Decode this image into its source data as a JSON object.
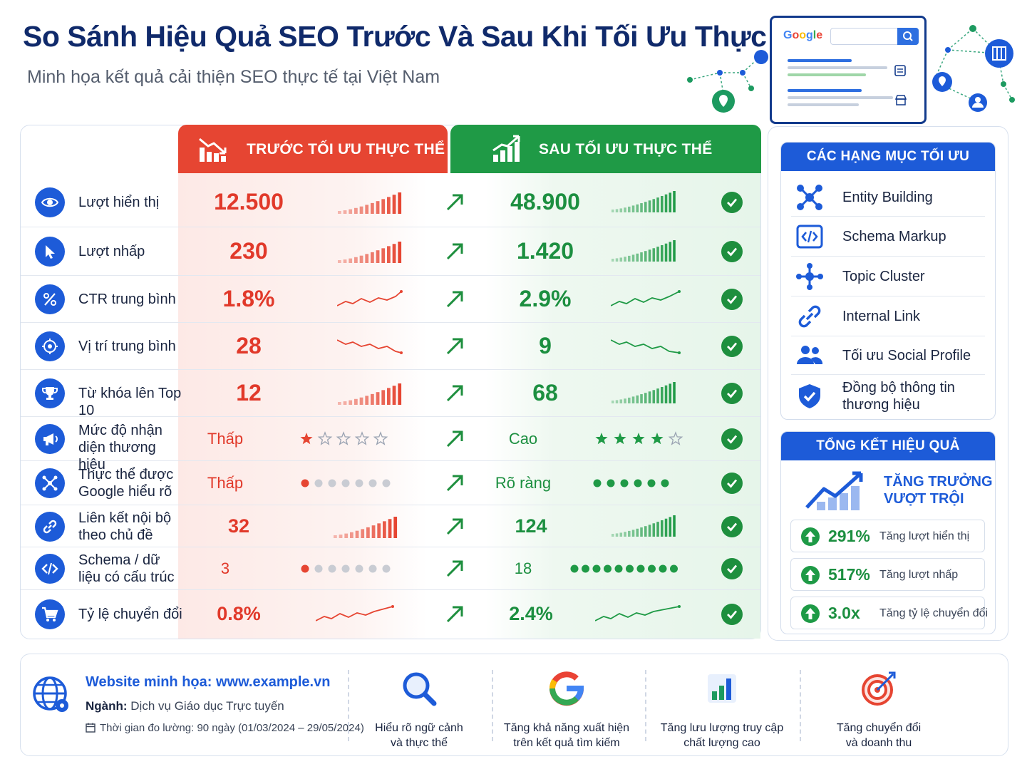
{
  "header": {
    "title": "So Sánh Hiệu Quả SEO Trước Và Sau Khi Tối Ưu Thực Thể",
    "subtitle": "Minh họa kết quả cải thiện SEO thực tế tại Việt Nam",
    "google_logo": "Google"
  },
  "table": {
    "before_header": "TRƯỚC TỐI ƯU THỰC THỂ",
    "after_header": "SAU TỐI ƯU THỰC THỂ",
    "rows": [
      {
        "label": "Lượt hiển thị",
        "before": "12.500",
        "after": "48.900",
        "icon": "eye-icon",
        "viz": "bars"
      },
      {
        "label": "Lượt nhấp",
        "before": "230",
        "after": "1.420",
        "icon": "cursor-icon",
        "viz": "bars"
      },
      {
        "label": "CTR trung bình",
        "before": "1.8%",
        "after": "2.9%",
        "icon": "percent-icon",
        "viz": "line-up"
      },
      {
        "label": "Vị trí trung bình",
        "before": "28",
        "after": "9",
        "icon": "target-icon",
        "viz": "line-down"
      },
      {
        "label": "Từ khóa lên Top 10",
        "before": "12",
        "after": "68",
        "icon": "trophy-icon",
        "viz": "bars"
      },
      {
        "label": "Mức độ nhận diện thương hiệu",
        "before": "Thấp",
        "after": "Cao",
        "icon": "megaphone-icon",
        "viz": "stars",
        "before_stars": 1,
        "after_stars": 4
      },
      {
        "label": "Thực thể được Google hiểu rõ",
        "before": "Thấp",
        "after": "Rõ ràng",
        "icon": "network-icon",
        "viz": "dots",
        "before_dots": 1,
        "after_dots": 6
      },
      {
        "label": "Liên kết nội bộ theo chủ đề",
        "before": "32",
        "after": "124",
        "icon": "link-icon",
        "viz": "bars"
      },
      {
        "label": "Schema / dữ liệu có cấu trúc",
        "before": "3",
        "after": "18",
        "icon": "code-icon",
        "viz": "dots",
        "before_dots": 1,
        "after_dots": 10
      },
      {
        "label": "Tỷ lệ chuyển đổi",
        "before": "0.8%",
        "after": "2.4%",
        "icon": "cart-icon",
        "viz": "line-up"
      }
    ]
  },
  "categories": {
    "title": "CÁC HẠNG MỤC TỐI ƯU",
    "items": [
      {
        "label": "Entity Building",
        "icon": "entity-icon"
      },
      {
        "label": "Schema Markup",
        "icon": "code-icon"
      },
      {
        "label": "Topic Cluster",
        "icon": "cluster-icon"
      },
      {
        "label": "Internal Link",
        "icon": "link-icon"
      },
      {
        "label": "Tối ưu Social Profile",
        "icon": "users-icon"
      },
      {
        "label": "Đồng bộ thông tin thương hiệu",
        "icon": "shield-check-icon"
      }
    ]
  },
  "summary": {
    "title": "TỔNG KẾT HIỆU QUẢ",
    "growth_line1": "TĂNG TRƯỞNG",
    "growth_line2": "VƯỢT TRỘI",
    "stats": [
      {
        "value": "291%",
        "label": "Tăng lượt hiển thị"
      },
      {
        "value": "517%",
        "label": "Tăng lượt nhấp"
      },
      {
        "value": "3.0x",
        "label": "Tăng tỷ lệ chuyển đổi"
      }
    ]
  },
  "footer": {
    "website": "Website minh họa: www.example.vn",
    "industry_label": "Ngành:",
    "industry_value": "Dịch vụ Giáo dục Trực tuyến",
    "period": "Thời gian đo lường: 90 ngày (01/03/2024 – 29/05/2024)",
    "features": [
      {
        "line1": "Hiểu rõ ngữ cảnh",
        "line2": "và thực thể",
        "icon": "search-icon"
      },
      {
        "line1": "Tăng khả năng xuất hiện",
        "line2": "trên kết quả tìm kiếm",
        "icon": "google-icon"
      },
      {
        "line1": "Tăng lưu lượng truy cập",
        "line2": "chất lượng cao",
        "icon": "chart-icon"
      },
      {
        "line1": "Tăng chuyển đổi",
        "line2": "và doanh thu",
        "icon": "target-icon"
      }
    ]
  },
  "colors": {
    "red": "#e64532",
    "green": "#1f9a46",
    "blue": "#1d5bd8",
    "navy": "#102a6b"
  }
}
